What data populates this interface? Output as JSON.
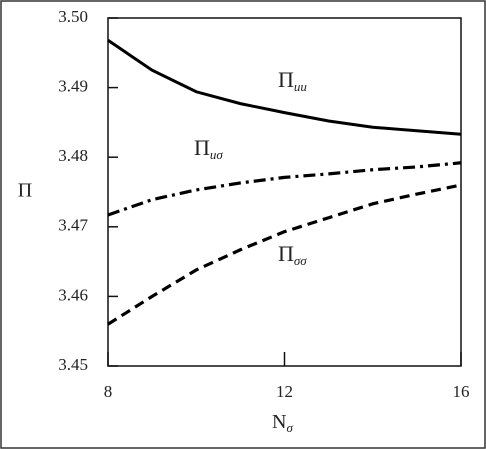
{
  "chart_data": {
    "type": "line",
    "x_label": {
      "text": "N",
      "sub": "σ"
    },
    "y_label": "Π",
    "xlim": [
      8,
      16
    ],
    "xticks": [
      8,
      12,
      16
    ],
    "ylim": [
      3.45,
      3.5
    ],
    "yticks": [
      {
        "value": 3.5,
        "label": "3.50"
      },
      3.49,
      3.48,
      3.47,
      3.46,
      3.45
    ],
    "x": [
      8,
      9,
      10,
      11,
      12,
      13,
      14,
      15,
      16
    ],
    "series": [
      {
        "color": "#000000",
        "style": "solid",
        "values": [
          3.4968,
          3.4925,
          3.4894,
          3.4877,
          3.4864,
          3.4852,
          3.4843,
          3.4838,
          3.4833
        ]
      },
      {
        "color": "#000000",
        "style": "dashdot",
        "values": [
          3.4717,
          3.4739,
          3.4753,
          3.4763,
          3.4771,
          3.4776,
          3.4782,
          3.4786,
          3.4792
        ]
      },
      {
        "color": "#000000",
        "style": "dashed",
        "values": [
          3.456,
          3.46,
          3.4638,
          3.4667,
          3.4693,
          3.4713,
          3.4733,
          3.4747,
          3.476
        ]
      }
    ],
    "annotations": [
      {
        "text": "Π",
        "sub": "uu"
      },
      {
        "text": "Π",
        "sub": "uσ"
      },
      {
        "text": "Π",
        "sub": "σσ"
      }
    ]
  }
}
